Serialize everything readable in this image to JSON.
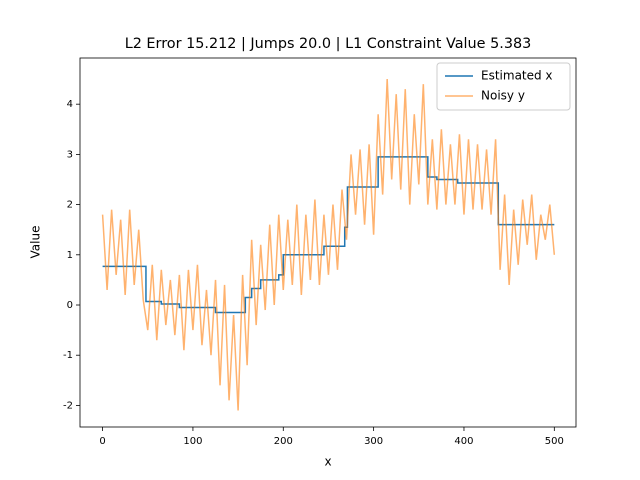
{
  "chart_data": {
    "type": "line",
    "title": "L2 Error 15.212 | Jumps 20.0 | L1 Constraint Value 5.383",
    "xlabel": "x",
    "ylabel": "Value",
    "xlim": [
      -25,
      524
    ],
    "ylim": [
      -2.43,
      4.92
    ],
    "xticks": [
      0,
      100,
      200,
      300,
      400,
      500
    ],
    "yticks": [
      -2,
      -1,
      0,
      1,
      2,
      3,
      4
    ],
    "legend": "upper right",
    "series": [
      {
        "name": "Estimated x",
        "color": "#1f77b4",
        "opacity": 1,
        "x": [
          0,
          48,
          48,
          65,
          65,
          85,
          85,
          125,
          125,
          158,
          158,
          165,
          165,
          175,
          175,
          195,
          195,
          200,
          200,
          245,
          245,
          268,
          268,
          271,
          271,
          305,
          305,
          360,
          360,
          370,
          370,
          393,
          393,
          438,
          438,
          500
        ],
        "values": [
          0.77,
          0.77,
          0.07,
          0.07,
          0.02,
          0.02,
          -0.05,
          -0.05,
          -0.15,
          -0.15,
          0.15,
          0.15,
          0.33,
          0.33,
          0.5,
          0.5,
          0.6,
          0.6,
          1.0,
          1.0,
          1.17,
          1.17,
          1.55,
          1.55,
          2.35,
          2.35,
          2.95,
          2.95,
          2.55,
          2.55,
          2.5,
          2.5,
          2.43,
          2.43,
          1.6,
          1.6
        ]
      },
      {
        "name": "Noisy y",
        "color": "#ff7f0e",
        "opacity": 0.6,
        "x": [
          0,
          5,
          10,
          15,
          20,
          25,
          30,
          35,
          40,
          45,
          50,
          55,
          60,
          65,
          70,
          75,
          80,
          85,
          90,
          95,
          100,
          105,
          110,
          115,
          120,
          125,
          130,
          135,
          140,
          145,
          150,
          155,
          160,
          165,
          170,
          175,
          180,
          185,
          190,
          195,
          200,
          205,
          210,
          215,
          220,
          225,
          230,
          235,
          240,
          245,
          250,
          255,
          260,
          265,
          270,
          275,
          280,
          285,
          290,
          295,
          300,
          305,
          310,
          315,
          320,
          325,
          330,
          335,
          340,
          345,
          350,
          355,
          360,
          365,
          370,
          375,
          380,
          385,
          390,
          395,
          400,
          405,
          410,
          415,
          420,
          425,
          430,
          435,
          440,
          445,
          450,
          455,
          460,
          465,
          470,
          475,
          480,
          485,
          490,
          495,
          500
        ],
        "values": [
          1.8,
          0.3,
          1.9,
          0.6,
          1.7,
          0.2,
          1.9,
          0.4,
          1.5,
          0.1,
          -0.5,
          0.8,
          -0.7,
          0.7,
          -0.4,
          0.5,
          -0.6,
          0.6,
          -0.9,
          0.7,
          -0.5,
          0.8,
          -0.8,
          0.3,
          -1.0,
          0.5,
          -1.6,
          0.4,
          -1.9,
          -0.2,
          -2.1,
          0.6,
          -1.2,
          1.3,
          -0.4,
          1.2,
          -0.1,
          1.6,
          0.0,
          1.8,
          0.3,
          1.7,
          0.4,
          2.0,
          0.2,
          1.8,
          0.5,
          2.1,
          0.4,
          1.8,
          0.6,
          2.0,
          0.7,
          2.3,
          1.3,
          3.0,
          1.8,
          3.1,
          1.6,
          3.2,
          1.4,
          3.8,
          2.2,
          4.5,
          2.5,
          4.2,
          2.3,
          4.3,
          2.0,
          3.8,
          2.4,
          4.4,
          2.0,
          3.3,
          1.9,
          3.5,
          2.0,
          3.2,
          2.0,
          3.4,
          1.8,
          3.3,
          1.9,
          3.2,
          1.9,
          3.1,
          1.8,
          3.3,
          0.7,
          2.2,
          0.4,
          1.9,
          0.8,
          2.1,
          1.2,
          2.2,
          0.9,
          1.8,
          1.3,
          2.0,
          1.0
        ]
      }
    ]
  }
}
